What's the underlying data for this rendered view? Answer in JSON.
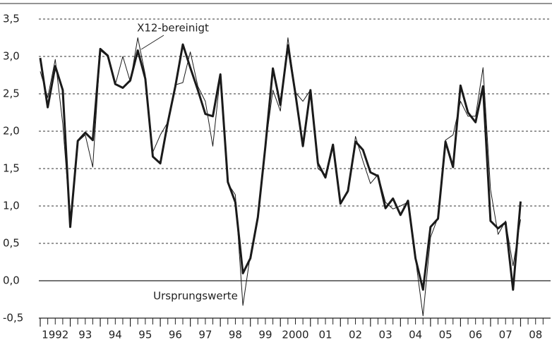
{
  "chart_data": {
    "type": "line",
    "x": [
      1992,
      1992.25,
      1992.5,
      1992.75,
      1993,
      1993.25,
      1993.5,
      1993.75,
      1994,
      1994.25,
      1994.5,
      1994.75,
      1995,
      1995.25,
      1995.5,
      1995.75,
      1996,
      1996.25,
      1996.5,
      1996.75,
      1997,
      1997.25,
      1997.5,
      1997.75,
      1998,
      1998.25,
      1998.5,
      1998.75,
      1999,
      1999.25,
      1999.5,
      1999.75,
      2000,
      2000.25,
      2000.5,
      2000.75,
      2001,
      2001.25,
      2001.5,
      2001.75,
      2002,
      2002.25,
      2002.5,
      2002.75,
      2003,
      2003.25,
      2003.5,
      2003.75,
      2004,
      2004.25,
      2004.5,
      2004.75,
      2005,
      2005.25,
      2005.5,
      2005.75,
      2006,
      2006.25,
      2006.5,
      2006.75,
      2007,
      2007.25,
      2007.5,
      2007.75,
      2008
    ],
    "series": [
      {
        "name": "Ursprungswerte",
        "color": "#1a1a1a",
        "width": 3,
        "values": [
          2.98,
          2.32,
          2.87,
          2.55,
          0.72,
          1.87,
          1.98,
          1.88,
          3.1,
          3.01,
          2.63,
          2.58,
          2.68,
          3.08,
          2.7,
          1.66,
          1.57,
          2.12,
          2.6,
          3.16,
          2.85,
          2.55,
          2.23,
          2.2,
          2.76,
          1.32,
          1.05,
          0.1,
          0.3,
          0.85,
          1.8,
          2.84,
          2.35,
          3.15,
          2.5,
          1.8,
          2.55,
          1.57,
          1.38,
          1.82,
          1.03,
          1.2,
          1.86,
          1.75,
          1.45,
          1.4,
          0.97,
          1.1,
          0.88,
          1.07,
          0.3,
          -0.12,
          0.72,
          0.83,
          1.86,
          1.52,
          2.61,
          2.25,
          2.12,
          2.6,
          0.8,
          0.7,
          0.78,
          -0.12,
          1.06
        ]
      },
      {
        "name": "X12-bereinigt",
        "color": "#1a1a1a",
        "width": 1,
        "values": [
          2.8,
          2.45,
          2.96,
          2.1,
          0.8,
          1.86,
          1.95,
          1.52,
          3.08,
          3.0,
          2.62,
          3.0,
          2.66,
          3.25,
          2.75,
          1.72,
          1.95,
          2.12,
          2.62,
          2.65,
          3.06,
          2.6,
          2.4,
          1.8,
          2.75,
          1.3,
          1.15,
          -0.33,
          0.35,
          0.88,
          1.8,
          2.55,
          2.27,
          3.25,
          2.52,
          2.4,
          2.55,
          1.5,
          1.42,
          1.8,
          1.05,
          1.18,
          1.93,
          1.6,
          1.3,
          1.42,
          1.05,
          0.96,
          1.0,
          1.05,
          0.3,
          -0.47,
          0.58,
          0.85,
          1.88,
          1.95,
          2.4,
          2.2,
          2.2,
          2.85,
          1.22,
          0.62,
          0.8,
          0.2,
          0.82
        ]
      }
    ],
    "xlim": [
      1992,
      2009
    ],
    "xticks": [
      1992,
      {
        "value": 1993,
        "label": "93"
      },
      {
        "value": 1994,
        "label": "94"
      },
      {
        "value": 1995,
        "label": "95"
      },
      {
        "value": 1996,
        "label": "96"
      },
      {
        "value": 1997,
        "label": "97"
      },
      {
        "value": 1998,
        "label": "98"
      },
      {
        "value": 1999,
        "label": "99"
      },
      2000,
      {
        "value": 2001,
        "label": "01"
      },
      {
        "value": 2002,
        "label": "02"
      },
      {
        "value": 2003,
        "label": "03"
      },
      {
        "value": 2004,
        "label": "04"
      },
      {
        "value": 2005,
        "label": "05"
      },
      {
        "value": 2006,
        "label": "06"
      },
      {
        "value": 2007,
        "label": "07"
      },
      {
        "value": 2008,
        "label": "08"
      }
    ],
    "ylim": [
      -0.5,
      3.5
    ],
    "yticks": [
      {
        "value": -0.5,
        "label": "-0,5"
      },
      {
        "value": 0,
        "label": "0,0"
      },
      {
        "value": 0.5,
        "label": "0,5"
      },
      {
        "value": 1,
        "label": "1,0"
      },
      {
        "value": 1.5,
        "label": "1,5"
      },
      {
        "value": 2,
        "label": "2,0"
      },
      {
        "value": 2.5,
        "label": "2,5"
      },
      {
        "value": 3,
        "label": "3,0"
      },
      {
        "value": 3.5,
        "label": "3,5"
      }
    ],
    "grid": true
  }
}
